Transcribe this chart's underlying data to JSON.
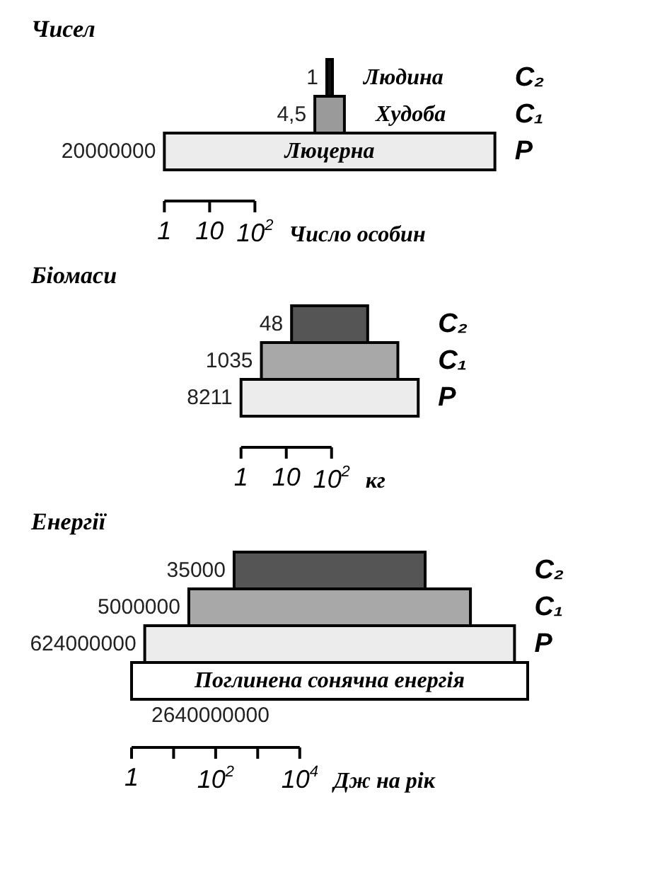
{
  "chart_data": [
    {
      "type": "other",
      "title": "Чисел",
      "xlabel": "Число особин",
      "categories": [
        "C₂",
        "C₁",
        "P"
      ],
      "values": [
        1,
        4.5,
        20000000
      ],
      "value_labels": [
        "1",
        "4,5",
        "20000000"
      ],
      "colors": [
        "#111111",
        "#9a9a9a",
        "#ececec"
      ],
      "annotations": [
        {
          "text": "Людина",
          "y": "C₂"
        },
        {
          "text": "Худоба",
          "y": "C₁"
        },
        {
          "text": "Люцерна",
          "y": "P"
        },
        "1",
        "10",
        "10$^{2}$"
      ]
    },
    {
      "type": "other",
      "title": "Біомаси",
      "xlabel": "кг",
      "categories": [
        "C₂",
        "C₁",
        "P"
      ],
      "values": [
        48,
        1035,
        8211
      ],
      "value_labels": [
        "48",
        "1035",
        "8211"
      ],
      "colors": [
        "#555555",
        "#a8a8a8",
        "#ececec"
      ],
      "annotations": [
        "1",
        "10",
        "10$^{2}$"
      ]
    },
    {
      "type": "other",
      "title": "Енергії",
      "xlabel": "Дж на рік",
      "categories": [
        "C₂",
        "C₁",
        "P",
        null
      ],
      "values": [
        35000,
        5000000,
        624000000,
        2640000000
      ],
      "value_labels": [
        "35000",
        "5000000",
        "624000000",
        "2640000000"
      ],
      "colors": [
        "#555555",
        "#a8a8a8",
        "#ececec",
        "#ffffff"
      ],
      "annotations": [
        {
          "text": "Поглинена сонячна енергія"
        },
        "1",
        "10$^{2}$",
        "10$^{4}$"
      ]
    }
  ]
}
